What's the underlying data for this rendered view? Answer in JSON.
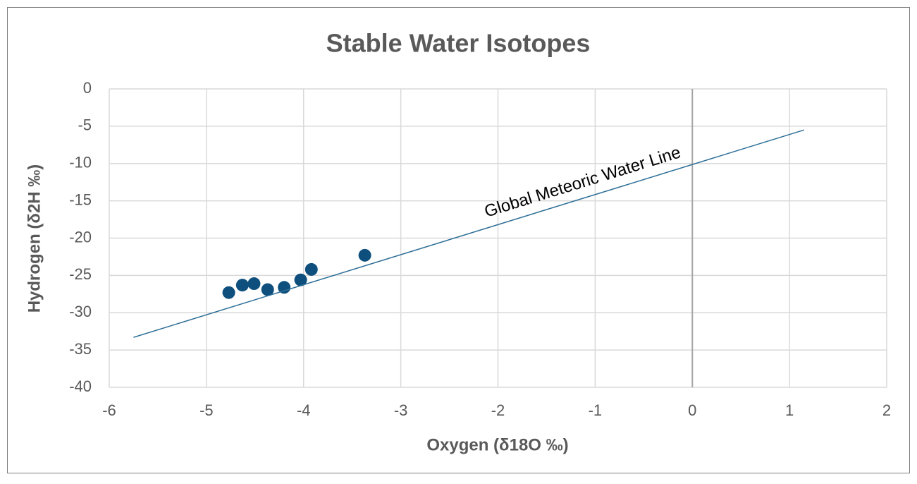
{
  "chart_data": {
    "type": "scatter",
    "title": "Stable Water Isotopes",
    "x_label": "Oxygen  (δ18O ‰)",
    "y_label": "Hydrogen (δ2H ‰)",
    "xlim": [
      -6,
      2
    ],
    "ylim": [
      -40,
      0
    ],
    "xticks": [
      -6,
      -5,
      -4,
      -3,
      -2,
      -1,
      0,
      1,
      2
    ],
    "yticks": [
      0,
      -5,
      -10,
      -15,
      -20,
      -25,
      -30,
      -35,
      -40
    ],
    "grid": true,
    "series": [
      {
        "type": "scatter",
        "color": "#0f4f7d",
        "x": [
          -4.77,
          -4.63,
          -4.51,
          -4.37,
          -4.2,
          -4.03,
          -3.92,
          -3.37
        ],
        "values": [
          -27.3,
          -26.3,
          -26.1,
          -26.9,
          -26.6,
          -25.6,
          -24.2,
          -22.3
        ]
      },
      {
        "type": "line",
        "name": "Global Meteoric Water Line",
        "color": "#2e6f98",
        "x": [
          -5.75,
          1.15
        ],
        "values": [
          -33.3,
          -5.5
        ]
      }
    ]
  }
}
